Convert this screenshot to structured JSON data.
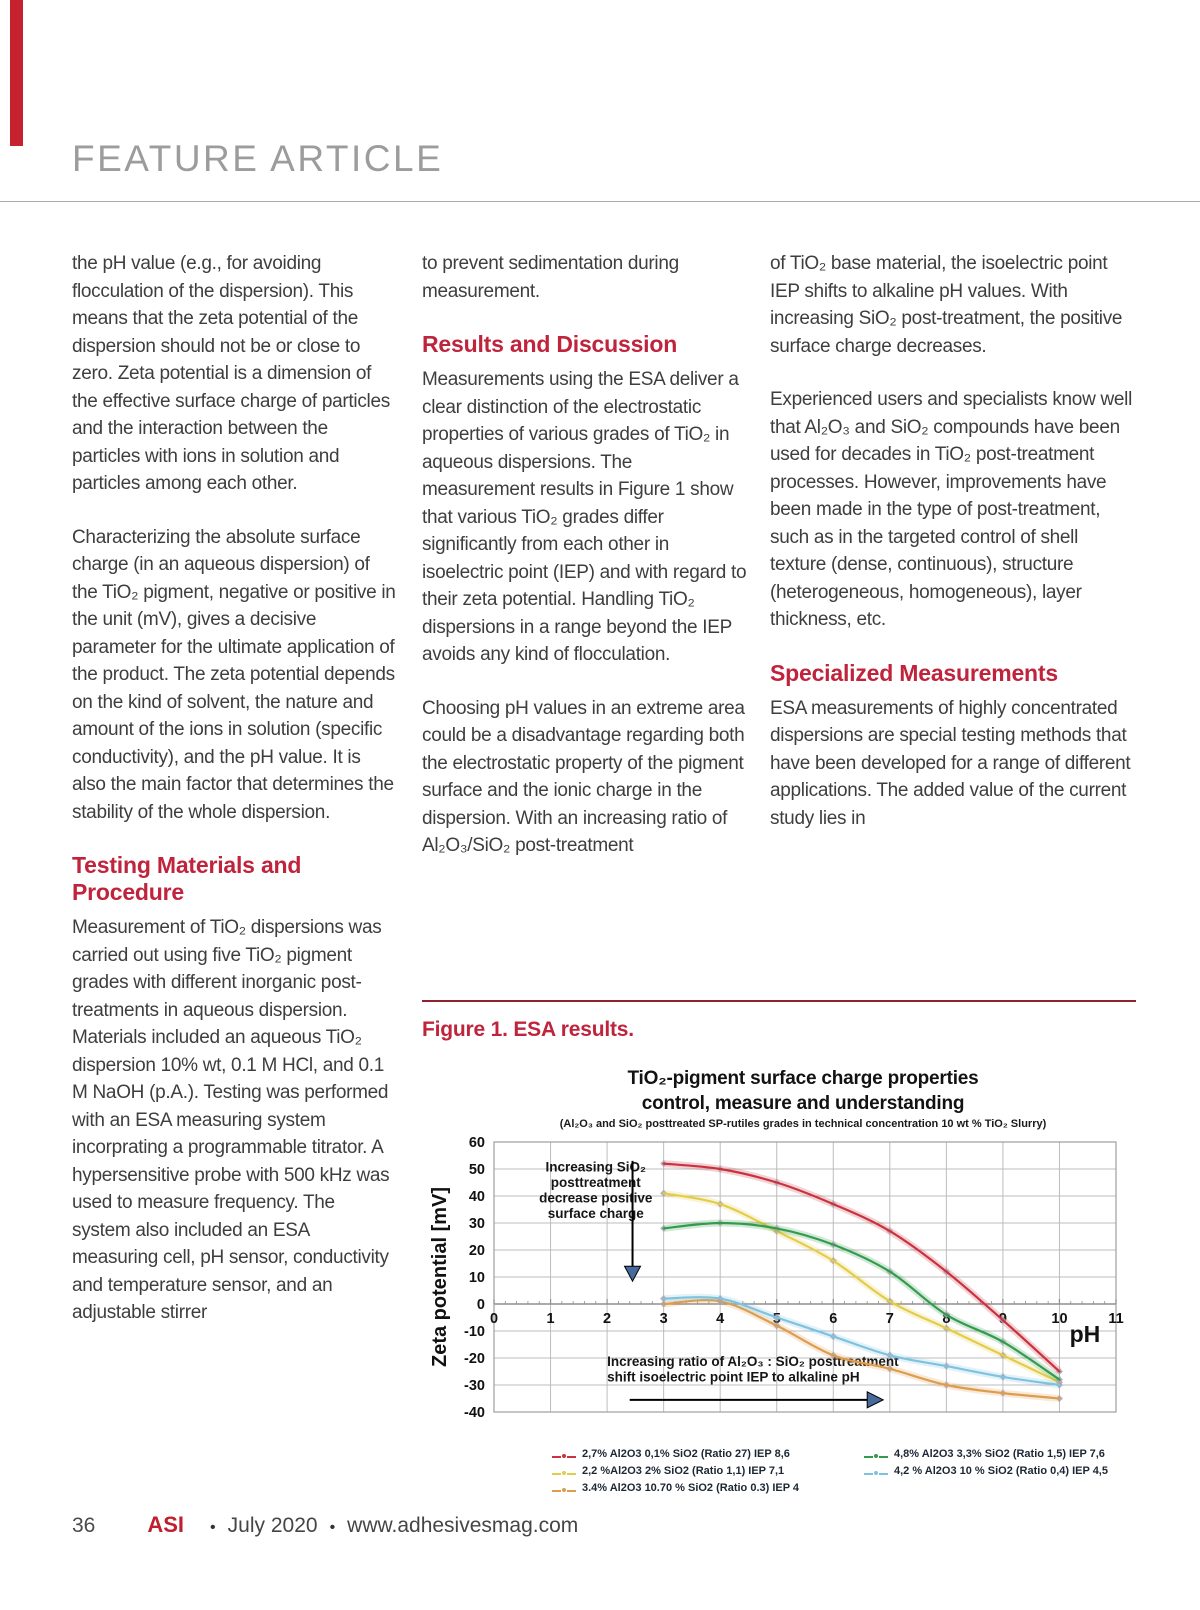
{
  "page_header": {
    "title": "FEATURE ARTICLE"
  },
  "article": {
    "col1": {
      "p1": "the pH value (e.g., for avoiding flocculation of the dispersion). This means that the zeta potential of the dispersion should not be or close to zero. Zeta potential is a dimension of the effective surface charge of particles and the interaction between the particles with ions in solution and particles among each other.",
      "p2": "Characterizing the absolute surface charge (in an aqueous dispersion) of the TiO₂ pigment, negative or positive in the unit (mV), gives a decisive parameter for the ultimate application of the product. The zeta potential depends on the kind of solvent, the nature and amount of the ions in solution (specific conductivity), and the pH value. It is also the main factor that determines the stability of the whole dispersion.",
      "h1": "Testing Materials and Procedure",
      "p3": "Measurement of TiO₂ dispersions was carried out using five TiO₂ pigment grades with different inorganic post-treatments in aqueous dispersion. Materials included an aqueous TiO₂ dispersion 10% wt, 0.1 M HCl, and 0.1 M NaOH (p.A.). Testing was performed with an ESA measuring system incorprating a programmable titrator. A hypersensitive probe with 500 kHz was used to measure frequency. The system also included an ESA measuring cell, pH sensor, conductivity and temperature sensor, and an adjustable stirrer"
    },
    "col2": {
      "p1": "to prevent sedimentation during measurement.",
      "h1": "Results and Discussion",
      "p2": "Measurements using the ESA deliver a clear distinction of the electrostatic properties of various grades of TiO₂ in aqueous dispersions. The measurement results in Figure 1 show that various TiO₂ grades differ significantly from each other in isoelectric point (IEP) and with regard to their zeta potential. Handling TiO₂ dispersions in a range beyond the IEP avoids any kind of flocculation.",
      "p3": "Choosing pH values in an extreme area could be a disadvantage regarding both the electrostatic property of the pigment surface and the ionic charge in the dispersion. With an increasing ratio of Al₂O₃/SiO₂ post-treatment"
    },
    "col3": {
      "p1": "of TiO₂ base material, the isoelectric point IEP shifts to alkaline pH values. With increasing SiO₂ post-treatment, the positive surface charge decreases.",
      "p2": "Experienced users and specialists know well that Al₂O₃ and SiO₂ compounds have been used for decades in TiO₂ post-treatment processes. However, improvements have been made in the type of post-treatment, such as in the targeted control of shell texture (dense, continuous), structure (heterogeneous, homogeneous), layer thickness, etc.",
      "h1": "Specialized Measurements",
      "p3": "ESA measurements of highly concentrated dispersions are special testing methods that have been developed for a range of different applications. The added value of the current study lies in"
    }
  },
  "figure": {
    "caption": "Figure 1. ESA results."
  },
  "chart_data": {
    "type": "line",
    "title": "TiO₂-pigment surface charge properties",
    "title_line2": "control, measure and understanding",
    "subtitle": "(Al₂O₃ and SiO₂ posttreated SP-rutiles grades in technical concentration 10 wt % TiO₂ Slurry)",
    "xlabel": "pH",
    "ylabel": "Zeta potential [mV]",
    "xlim": [
      0,
      11
    ],
    "ylim": [
      -40,
      60
    ],
    "x_ticks": [
      0,
      1,
      2,
      3,
      4,
      5,
      6,
      7,
      8,
      9,
      10,
      11
    ],
    "y_ticks": [
      60,
      50,
      40,
      30,
      20,
      10,
      0,
      -10,
      -20,
      -30,
      -40
    ],
    "grid": true,
    "legend_position": "bottom",
    "x": [
      3,
      4,
      5,
      6,
      7,
      8,
      9,
      10
    ],
    "series": [
      {
        "name": "2,7% Al2O3 0,1% SiO2 (Ratio 27) IEP 8,6",
        "color": "#c9323e",
        "values": [
          52,
          50,
          45,
          37,
          27,
          12,
          -6,
          -25
        ]
      },
      {
        "name": "2,2 %Al2O3 2% SiO2 (Ratio 1,1) IEP 7,1",
        "color": "#e2cd4a",
        "values": [
          41,
          37,
          27,
          16,
          1,
          -9,
          -19,
          -29
        ]
      },
      {
        "name": "3.4% Al2O3 10.70 % SiO2 (Ratio 0.3) IEP 4",
        "color": "#dd9d4e",
        "values": [
          0,
          1,
          -8,
          -19,
          -24,
          -30,
          -33,
          -35
        ]
      },
      {
        "name": "4,8% Al2O3 3,3% SiO2 (Ratio 1,5) IEP 7,6",
        "color": "#339b4d",
        "values": [
          28,
          30,
          28,
          22,
          12,
          -4,
          -14,
          -28
        ]
      },
      {
        "name": "4,2 % Al2O3 10 % SiO2 (Ratio 0,4) IEP 4,5",
        "color": "#7fc2e0",
        "values": [
          2,
          2,
          -5,
          -12,
          -19,
          -23,
          -27,
          -30
        ]
      }
    ],
    "legend_columns": [
      [
        0,
        1,
        2
      ],
      [
        3,
        4
      ]
    ],
    "annotations": [
      {
        "lines": [
          "Increasing SiO₂",
          "posttreatment",
          "decrease positive",
          "surface charge"
        ],
        "align": "center",
        "text_x": 1.8,
        "text_y": 49,
        "arrow": {
          "x1": 2.45,
          "y1": 53,
          "x2": 2.45,
          "y2": 14,
          "dir": "down"
        }
      },
      {
        "lines": [
          "Increasing ratio of Al₂O₃ : SiO₂ posttreatment",
          "shift isoelectric point IEP to alkaline pH"
        ],
        "align": "left",
        "text_x": 2.0,
        "text_y": -23,
        "arrow": {
          "x1": 2.4,
          "y1": -35.5,
          "x2": 6.6,
          "y2": -35.5,
          "dir": "right"
        }
      }
    ],
    "arrow_head_color": "#47699c"
  },
  "footer": {
    "page_number": "36",
    "brand": "ASI",
    "bullet": "•",
    "issue": "July 2020",
    "website": "www.adhesivesmag.com"
  }
}
